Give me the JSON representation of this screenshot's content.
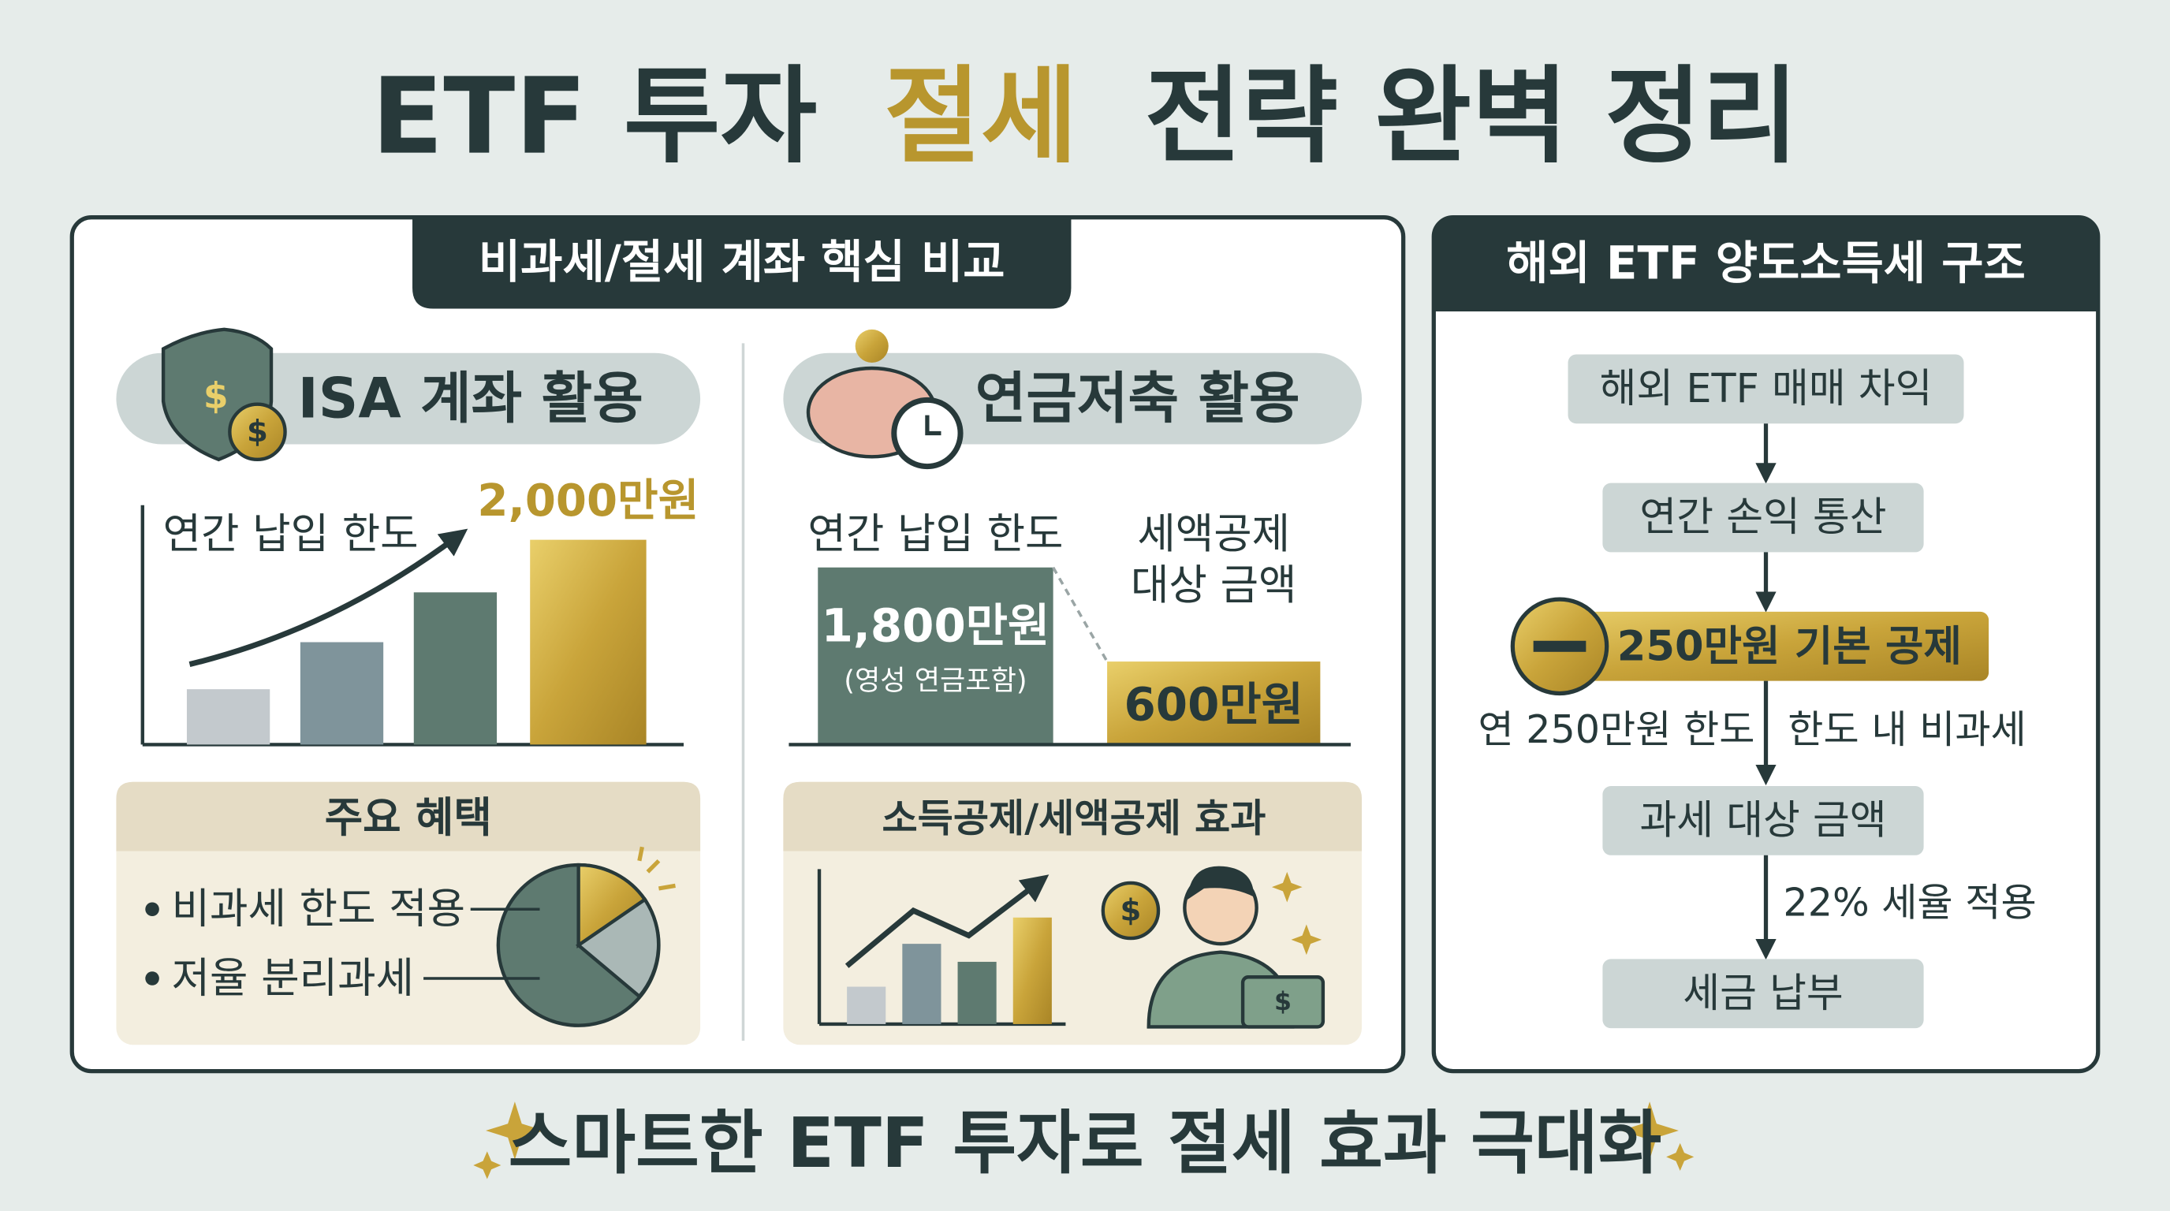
{
  "header": {
    "title": {
      "before": "ETF 투자",
      "highlight": "절세",
      "after": "전략 완벽 정리"
    }
  },
  "account_comparison": {
    "title": "비과세/절세 계좌 핵심 비교",
    "isa": {
      "label": "ISA 계좌 활용",
      "limit_label": "연간 납입 한도",
      "limit_amount": "2,000만원",
      "benefits": {
        "title": "주요 혜택",
        "items": [
          "비과세 한도 적용",
          "저율 분리과세"
        ]
      }
    },
    "pension": {
      "label": "연금저축 활용",
      "limit_label": "연간 납입 한도",
      "limit_amount": "1,800만원",
      "limit_note": "(영성 연금포함)",
      "deduction_label": [
        "세액공제",
        "대상 금액"
      ],
      "deduction_amount": "600만원",
      "effect_title": "소득공제/세액공제 효과"
    }
  },
  "overseas_tax": {
    "title": "해외 ETF 양도소득세 구조",
    "steps": [
      "해외 ETF 매매 차익",
      "연간 손익 통산",
      "250만원 기본 공제",
      "과세 대상 금액",
      "세금 납부"
    ],
    "notes": {
      "deduction_limit": "연 250만원 한도",
      "tax_free": "한도 내 비과세",
      "tax_rate": "22% 세율 적용"
    }
  },
  "footer": {
    "slogan": "스마트한 ETF 투자로 절세 효과 극대화"
  }
}
